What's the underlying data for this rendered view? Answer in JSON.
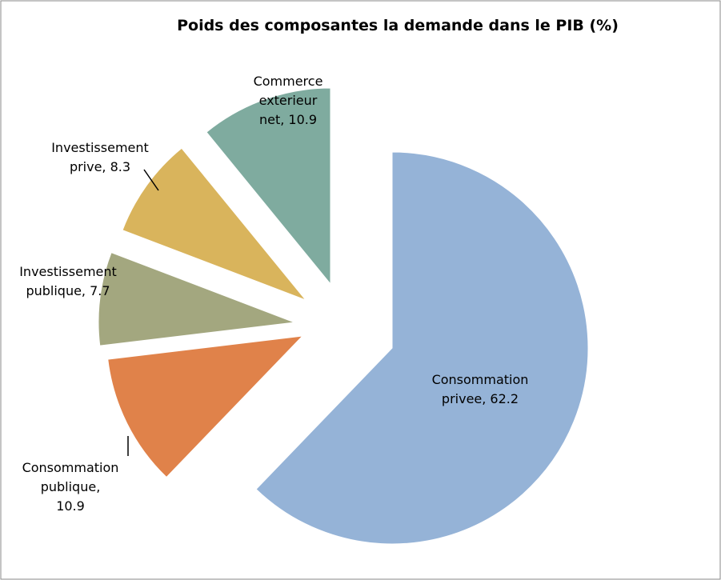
{
  "chart_data": {
    "type": "pie",
    "title": "Poids des composantes  la demande dans le PIB (%)",
    "values": [
      62.2,
      10.9,
      7.7,
      8.3,
      10.9
    ],
    "value_labels": [
      "Consommation privee, 62.2",
      "Consommation publique, 10.9",
      "Investissement publique, 7.7",
      "Investissement prive, 8.3",
      "Commerce exterieur net, 10.9"
    ],
    "colors": [
      "#95b3d7",
      "#e0824a",
      "#a3a77f",
      "#d9b45c",
      "#7fab9f"
    ]
  }
}
